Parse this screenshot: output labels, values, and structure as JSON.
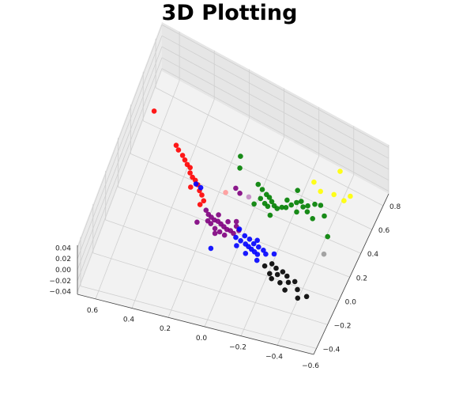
{
  "title": "3D Plotting",
  "chart_data": {
    "type": "scatter",
    "title": "3D Plotting",
    "xlabel": "",
    "ylabel": "",
    "zlabel": "",
    "grid": true,
    "x_ticks": [
      "0.6",
      "0.4",
      "0.2",
      "0.0",
      "−0.2",
      "−0.4",
      "−0.6"
    ],
    "y_ticks": [
      "−0.4",
      "−0.2",
      "0.0",
      "0.2",
      "0.4",
      "0.6",
      "0.8"
    ],
    "z_ticks": [
      "0.04",
      "0.02",
      "0.00",
      "−0.02",
      "−0.04"
    ],
    "xlim": [
      -0.6,
      0.7
    ],
    "ylim": [
      -0.45,
      0.9
    ],
    "zlim": [
      -0.045,
      0.045
    ],
    "series": [
      {
        "color": "#ff0000",
        "points": [
          [
            0.62,
            0.55,
            0.0
          ],
          [
            0.45,
            0.42,
            0.0
          ],
          [
            0.43,
            0.4,
            0.0
          ],
          [
            0.4,
            0.38,
            0.0
          ],
          [
            0.38,
            0.36,
            0.0
          ],
          [
            0.36,
            0.34,
            0.0
          ],
          [
            0.34,
            0.33,
            0.0
          ],
          [
            0.33,
            0.3,
            0.0
          ],
          [
            0.31,
            0.28,
            0.0
          ],
          [
            0.29,
            0.27,
            0.0
          ],
          [
            0.27,
            0.25,
            0.0
          ],
          [
            0.25,
            0.22,
            0.0
          ],
          [
            0.23,
            0.2,
            0.0
          ],
          [
            0.21,
            0.17,
            0.0
          ],
          [
            0.3,
            0.22,
            0.0
          ],
          [
            0.22,
            0.14,
            0.0
          ]
        ]
      },
      {
        "color": "#800080",
        "points": [
          [
            0.18,
            0.12,
            0.0
          ],
          [
            0.16,
            0.1,
            0.0
          ],
          [
            0.14,
            0.09,
            0.0
          ],
          [
            0.12,
            0.08,
            0.0
          ],
          [
            0.1,
            0.08,
            0.0
          ],
          [
            0.08,
            0.07,
            0.0
          ],
          [
            0.06,
            0.06,
            0.0
          ],
          [
            0.04,
            0.05,
            0.0
          ],
          [
            0.02,
            0.05,
            0.0
          ],
          [
            0.0,
            0.04,
            0.0
          ],
          [
            0.13,
            0.05,
            0.0
          ],
          [
            0.1,
            0.03,
            0.0
          ],
          [
            0.07,
            0.02,
            0.0
          ],
          [
            0.04,
            0.01,
            0.0
          ],
          [
            0.11,
            0.12,
            0.0
          ],
          [
            0.05,
            0.1,
            0.0
          ],
          [
            0.15,
            0.06,
            0.0
          ],
          [
            0.0,
            0.09,
            0.0
          ],
          [
            -0.02,
            0.07,
            0.0
          ],
          [
            0.09,
            0.0,
            0.0
          ],
          [
            0.2,
            0.03,
            0.0
          ],
          [
            0.05,
            0.3,
            0.0
          ],
          [
            0.08,
            0.32,
            0.0
          ],
          [
            0.01,
            0.12,
            0.0
          ]
        ]
      },
      {
        "color": "#0000ff",
        "points": [
          [
            0.28,
            0.25,
            0.0
          ],
          [
            0.25,
            0.24,
            0.0
          ],
          [
            -0.02,
            0.02,
            0.0
          ],
          [
            -0.05,
            0.01,
            0.0
          ],
          [
            -0.08,
            0.0,
            0.0
          ],
          [
            -0.1,
            -0.01,
            0.0
          ],
          [
            -0.12,
            -0.02,
            0.0
          ],
          [
            -0.14,
            -0.03,
            0.0
          ],
          [
            -0.16,
            -0.04,
            0.0
          ],
          [
            -0.06,
            0.05,
            0.0
          ],
          [
            -0.09,
            0.04,
            0.0
          ],
          [
            -0.12,
            0.02,
            0.0
          ],
          [
            -0.15,
            0.01,
            0.0
          ],
          [
            -0.18,
            0.0,
            0.0
          ],
          [
            -0.04,
            -0.03,
            0.0
          ],
          [
            -0.1,
            -0.06,
            0.0
          ],
          [
            -0.2,
            -0.02,
            0.0
          ],
          [
            -0.13,
            0.05,
            0.0
          ],
          [
            0.08,
            -0.1,
            0.0
          ],
          [
            -0.17,
            -0.08,
            0.0
          ],
          [
            -0.24,
            0.0,
            0.0
          ],
          [
            -0.02,
            0.08,
            0.0
          ]
        ]
      },
      {
        "color": "#008000",
        "points": [
          [
            0.12,
            0.52,
            0.0
          ],
          [
            0.1,
            0.45,
            0.0
          ],
          [
            -0.02,
            0.4,
            0.0
          ],
          [
            -0.05,
            0.38,
            0.0
          ],
          [
            -0.08,
            0.36,
            0.0
          ],
          [
            -0.1,
            0.35,
            0.0
          ],
          [
            -0.12,
            0.33,
            0.0
          ],
          [
            -0.06,
            0.32,
            0.0
          ],
          [
            -0.09,
            0.3,
            0.0
          ],
          [
            -0.11,
            0.29,
            0.0
          ],
          [
            -0.14,
            0.31,
            0.0
          ],
          [
            -0.16,
            0.3,
            0.0
          ],
          [
            -0.18,
            0.32,
            0.0
          ],
          [
            -0.2,
            0.33,
            0.0
          ],
          [
            -0.22,
            0.36,
            0.0
          ],
          [
            -0.19,
            0.38,
            0.0
          ],
          [
            -0.24,
            0.39,
            0.0
          ],
          [
            -0.26,
            0.41,
            0.0
          ],
          [
            -0.28,
            0.38,
            0.0
          ],
          [
            -0.3,
            0.4,
            0.0
          ],
          [
            -0.33,
            0.43,
            0.0
          ],
          [
            -0.36,
            0.44,
            0.0
          ],
          [
            -0.31,
            0.36,
            0.0
          ],
          [
            -0.35,
            0.33,
            0.0
          ],
          [
            -0.4,
            0.38,
            0.0
          ],
          [
            -0.46,
            0.25,
            0.0
          ],
          [
            -0.14,
            0.24,
            0.0
          ],
          [
            -0.04,
            0.27,
            0.0
          ],
          [
            -0.22,
            0.47,
            0.0
          ],
          [
            -0.26,
            0.33,
            0.0
          ]
        ]
      },
      {
        "color": "#ffff00",
        "points": [
          [
            -0.38,
            0.72,
            0.0
          ],
          [
            -0.28,
            0.57,
            0.0
          ],
          [
            -0.33,
            0.53,
            0.0
          ],
          [
            -0.4,
            0.55,
            0.0
          ],
          [
            -0.46,
            0.54,
            0.0
          ],
          [
            -0.48,
            0.59,
            0.0
          ]
        ]
      },
      {
        "color": "#000000",
        "points": [
          [
            -0.22,
            -0.1,
            0.0
          ],
          [
            -0.25,
            -0.07,
            0.0
          ],
          [
            -0.28,
            -0.09,
            0.0
          ],
          [
            -0.3,
            -0.13,
            0.0
          ],
          [
            -0.32,
            -0.1,
            0.0
          ],
          [
            -0.35,
            -0.12,
            0.0
          ],
          [
            -0.37,
            -0.16,
            0.0
          ],
          [
            -0.33,
            -0.18,
            0.0
          ],
          [
            -0.28,
            -0.17,
            0.0
          ],
          [
            -0.4,
            -0.14,
            0.0
          ],
          [
            -0.43,
            -0.19,
            0.0
          ],
          [
            -0.37,
            -0.22,
            0.0
          ],
          [
            -0.45,
            -0.25,
            0.0
          ],
          [
            -0.49,
            -0.22,
            0.0
          ],
          [
            -0.26,
            -0.14,
            0.0
          ]
        ]
      },
      {
        "color": "#9a9a9a",
        "points": [
          [
            -0.48,
            0.12,
            0.0
          ]
        ]
      },
      {
        "color": "#ff9999",
        "points": [
          [
            0.12,
            0.27,
            0.0
          ]
        ]
      },
      {
        "color": "#c38ac3",
        "points": [
          [
            0.0,
            0.3,
            0.0
          ]
        ]
      }
    ]
  }
}
